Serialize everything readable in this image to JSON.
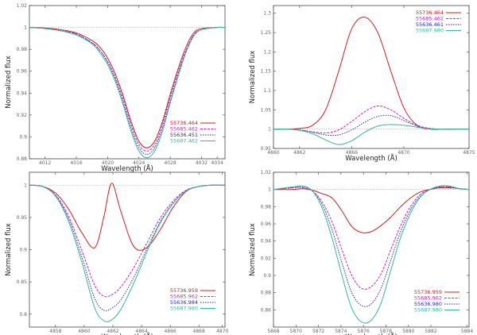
{
  "chart_data": [
    {
      "type": "line",
      "panel": "top-left",
      "xlabel": "Wavelength (Å)",
      "ylabel": "Normalized flux",
      "xlim": [
        4010,
        4035
      ],
      "ylim": [
        0.88,
        1.02
      ],
      "xtick_labels": [
        "4012",
        "4016",
        "4020",
        "4024",
        "4028",
        "4032",
        "4034"
      ],
      "xtick_values": [
        4012,
        4016,
        4020,
        4024,
        4028,
        4032,
        4034
      ],
      "ytick_labels": [
        "1.02",
        "1",
        "0.98",
        "0.96",
        "0.94",
        "0.92",
        "0.9",
        "0.88"
      ],
      "ytick_values": [
        1.02,
        1.0,
        0.98,
        0.96,
        0.94,
        0.92,
        0.9,
        0.88
      ],
      "reference_line": 1.0,
      "legend_position": "bottom-right",
      "x": [
        4010,
        4012,
        4014,
        4016,
        4018,
        4019,
        4020,
        4021,
        4022,
        4023,
        4024,
        4025,
        4026,
        4027,
        4028,
        4029,
        4030,
        4031,
        4032,
        4034,
        4035
      ],
      "series": [
        {
          "name": "55736.464",
          "color": "#cc2222",
          "dash": "",
          "values": [
            1.0,
            0.9995,
            0.998,
            0.995,
            0.988,
            0.982,
            0.972,
            0.957,
            0.937,
            0.914,
            0.896,
            0.89,
            0.896,
            0.914,
            0.939,
            0.962,
            0.982,
            0.995,
            0.999,
            1.0,
            1.0
          ]
        },
        {
          "name": "55685.462",
          "color": "#cc22cc",
          "dash": "3,1.5",
          "values": [
            1.0,
            0.999,
            0.997,
            0.994,
            0.986,
            0.979,
            0.969,
            0.954,
            0.934,
            0.911,
            0.893,
            0.887,
            0.893,
            0.911,
            0.936,
            0.959,
            0.979,
            0.993,
            0.998,
            1.0,
            1.0
          ]
        },
        {
          "name": "55636.451",
          "color": "#2a2aa8",
          "dash": "1.5,1.5",
          "values": [
            1.0,
            0.999,
            0.997,
            0.994,
            0.986,
            0.979,
            0.968,
            0.952,
            0.931,
            0.908,
            0.89,
            0.884,
            0.89,
            0.908,
            0.933,
            0.957,
            0.978,
            0.993,
            0.998,
            1.0,
            1.0
          ]
        },
        {
          "name": "55687.462",
          "color": "#33bb99",
          "dash": "",
          "values": [
            1.0,
            0.999,
            0.997,
            0.993,
            0.985,
            0.977,
            0.966,
            0.95,
            0.929,
            0.905,
            0.887,
            0.881,
            0.887,
            0.905,
            0.931,
            0.955,
            0.977,
            0.992,
            0.998,
            1.0,
            1.0
          ]
        }
      ]
    },
    {
      "type": "line",
      "panel": "top-right",
      "xlabel": "Wavelength (Å)",
      "ylabel": "Normalized flux",
      "xlim": [
        4860,
        4875
      ],
      "ylim": [
        0.95,
        1.32
      ],
      "xtick_labels": [
        "4860",
        "4862",
        "4866",
        "4870",
        "4875"
      ],
      "xtick_values": [
        4860,
        4862,
        4866,
        4870,
        4875
      ],
      "ytick_labels": [
        "1.3",
        "1.25",
        "1.2",
        "1.15",
        "1.1",
        "1.05",
        "1",
        "0.95"
      ],
      "ytick_values": [
        1.3,
        1.25,
        1.2,
        1.15,
        1.1,
        1.05,
        1.0,
        0.95
      ],
      "reference_line": 1.0,
      "legend_position": "top-right",
      "x": [
        4860,
        4861,
        4862,
        4863,
        4864,
        4865,
        4866,
        4867,
        4868,
        4869,
        4870,
        4871,
        4872,
        4873,
        4874,
        4875
      ],
      "series": [
        {
          "name": "55736.464",
          "color": "#cc2222",
          "dash": "",
          "values": [
            1.0,
            1.0,
            1.002,
            1.01,
            1.05,
            1.15,
            1.26,
            1.29,
            1.25,
            1.15,
            1.055,
            1.01,
            1.0,
            1.0,
            1.0,
            1.0
          ]
        },
        {
          "name": "55685.462",
          "color": "#cc22cc",
          "dash": "3,1.5",
          "values": [
            1.0,
            1.0,
            0.998,
            0.993,
            0.99,
            0.998,
            1.02,
            1.045,
            1.06,
            1.05,
            1.028,
            1.01,
            1.002,
            1.0,
            1.0,
            1.0
          ]
        },
        {
          "name": "55636.461",
          "color": "#2a2aa8",
          "dash": "1.5,1.5",
          "values": [
            1.0,
            1.0,
            0.998,
            0.992,
            0.985,
            0.985,
            0.998,
            1.018,
            1.033,
            1.035,
            1.022,
            1.008,
            1.001,
            1.0,
            1.0,
            1.0
          ]
        },
        {
          "name": "55687.980",
          "color": "#33bb99",
          "dash": "",
          "values": [
            1.0,
            1.0,
            0.997,
            0.988,
            0.972,
            0.96,
            0.97,
            0.992,
            1.008,
            1.012,
            1.01,
            1.005,
            1.001,
            1.0,
            1.0,
            1.0
          ]
        }
      ]
    },
    {
      "type": "line",
      "panel": "bottom-left",
      "xlabel": "Wavelength (Å)",
      "ylabel": "Normalized flux",
      "xlim": [
        4855,
        4870
      ],
      "ylim": [
        0.78,
        1.02
      ],
      "xtick_labels": [
        "4858",
        "4860",
        "4862",
        "4864",
        "4866",
        "4868",
        "4870"
      ],
      "xtick_values": [
        4857,
        4859.2,
        4861.4,
        4863.6,
        4865.8,
        4868.0,
        4869.8
      ],
      "ytick_labels": [
        "1",
        "0.95",
        "0.9",
        "0.85",
        "0.8"
      ],
      "ytick_values": [
        1.0,
        0.95,
        0.9,
        0.85,
        0.8
      ],
      "reference_line": 1.0,
      "legend_position": "bottom-right",
      "x": [
        4855,
        4856,
        4857,
        4858,
        4859,
        4860,
        4860.7,
        4861.3,
        4862,
        4863,
        4864,
        4865,
        4866,
        4867,
        4868,
        4869,
        4870
      ],
      "series": [
        {
          "name": "55736.959",
          "color": "#cc2222",
          "dash": "",
          "values": [
            1.0,
            0.998,
            0.988,
            0.963,
            0.927,
            0.903,
            0.95,
            1.003,
            0.96,
            0.905,
            0.903,
            0.93,
            0.965,
            0.99,
            0.998,
            1.0,
            1.0
          ]
        },
        {
          "name": "55685.962",
          "color": "#cc22cc",
          "dash": "3,1.5",
          "values": [
            1.0,
            0.998,
            0.985,
            0.952,
            0.9,
            0.845,
            0.828,
            0.83,
            0.842,
            0.872,
            0.91,
            0.948,
            0.975,
            0.992,
            0.998,
            1.0,
            1.0
          ]
        },
        {
          "name": "55636.984",
          "color": "#2a2aa8",
          "dash": "1.5,1.5",
          "values": [
            1.0,
            0.998,
            0.984,
            0.948,
            0.89,
            0.825,
            0.806,
            0.809,
            0.822,
            0.857,
            0.901,
            0.942,
            0.972,
            0.991,
            0.998,
            1.0,
            1.0
          ]
        },
        {
          "name": "55687.980",
          "color": "#33bb99",
          "dash": "",
          "values": [
            1.0,
            0.998,
            0.983,
            0.944,
            0.882,
            0.81,
            0.79,
            0.791,
            0.807,
            0.848,
            0.896,
            0.94,
            0.971,
            0.991,
            0.998,
            1.0,
            1.0
          ]
        }
      ]
    },
    {
      "type": "line",
      "panel": "bottom-right",
      "xlabel": "Wavelength (Å)",
      "ylabel": "Normalized flux",
      "xlim": [
        5867,
        5887
      ],
      "ylim": [
        0.84,
        1.02
      ],
      "xtick_labels": [
        "5868",
        "5870",
        "5872",
        "5874",
        "5876",
        "5878",
        "5880",
        "5882",
        "5884"
      ],
      "xtick_values": [
        5867.0,
        5869.3,
        5871.6,
        5873.9,
        5876.2,
        5878.5,
        5880.8,
        5883.1,
        5886.8
      ],
      "ytick_labels": [
        "1.02",
        "1",
        "0.98",
        "0.96",
        "0.94",
        "0.92",
        "0.9",
        "0.88",
        "0.86"
      ],
      "ytick_values": [
        1.02,
        1.0,
        0.98,
        0.96,
        0.94,
        0.92,
        0.9,
        0.88,
        0.86
      ],
      "reference_line": 1.0,
      "legend_position": "bottom-right",
      "x": [
        5867,
        5869,
        5870,
        5871,
        5872,
        5873,
        5874,
        5875,
        5876,
        5877,
        5878,
        5879,
        5880,
        5881,
        5882,
        5883,
        5884,
        5885,
        5886,
        5887
      ],
      "series": [
        {
          "name": "55736.959",
          "color": "#cc2222",
          "dash": "",
          "values": [
            1.0,
            1.0,
            1.001,
            0.999,
            0.995,
            0.99,
            0.975,
            0.957,
            0.95,
            0.951,
            0.958,
            0.968,
            0.98,
            0.99,
            0.997,
            1.0,
            1.002,
            1.002,
            1.001,
            1.0
          ]
        },
        {
          "name": "55685.962",
          "color": "#cc22cc",
          "dash": "3,1.5",
          "values": [
            1.0,
            1.002,
            1.002,
            0.998,
            0.985,
            0.962,
            0.93,
            0.9,
            0.885,
            0.887,
            0.902,
            0.93,
            0.958,
            0.98,
            0.994,
            1.0,
            1.003,
            1.003,
            1.001,
            1.0
          ]
        },
        {
          "name": "55636.980",
          "color": "#2a2aa8",
          "dash": "1.5,1.5",
          "values": [
            1.0,
            1.002,
            1.003,
            0.998,
            0.982,
            0.953,
            0.915,
            0.88,
            0.865,
            0.867,
            0.885,
            0.918,
            0.951,
            0.976,
            0.992,
            1.0,
            1.003,
            1.003,
            1.001,
            1.0
          ]
        },
        {
          "name": "55687.980",
          "color": "#33bb99",
          "dash": "",
          "values": [
            1.0,
            1.003,
            1.004,
            0.998,
            0.978,
            0.943,
            0.9,
            0.862,
            0.846,
            0.848,
            0.868,
            0.906,
            0.944,
            0.972,
            0.991,
            1.0,
            1.004,
            1.004,
            1.001,
            1.0
          ]
        }
      ]
    }
  ]
}
